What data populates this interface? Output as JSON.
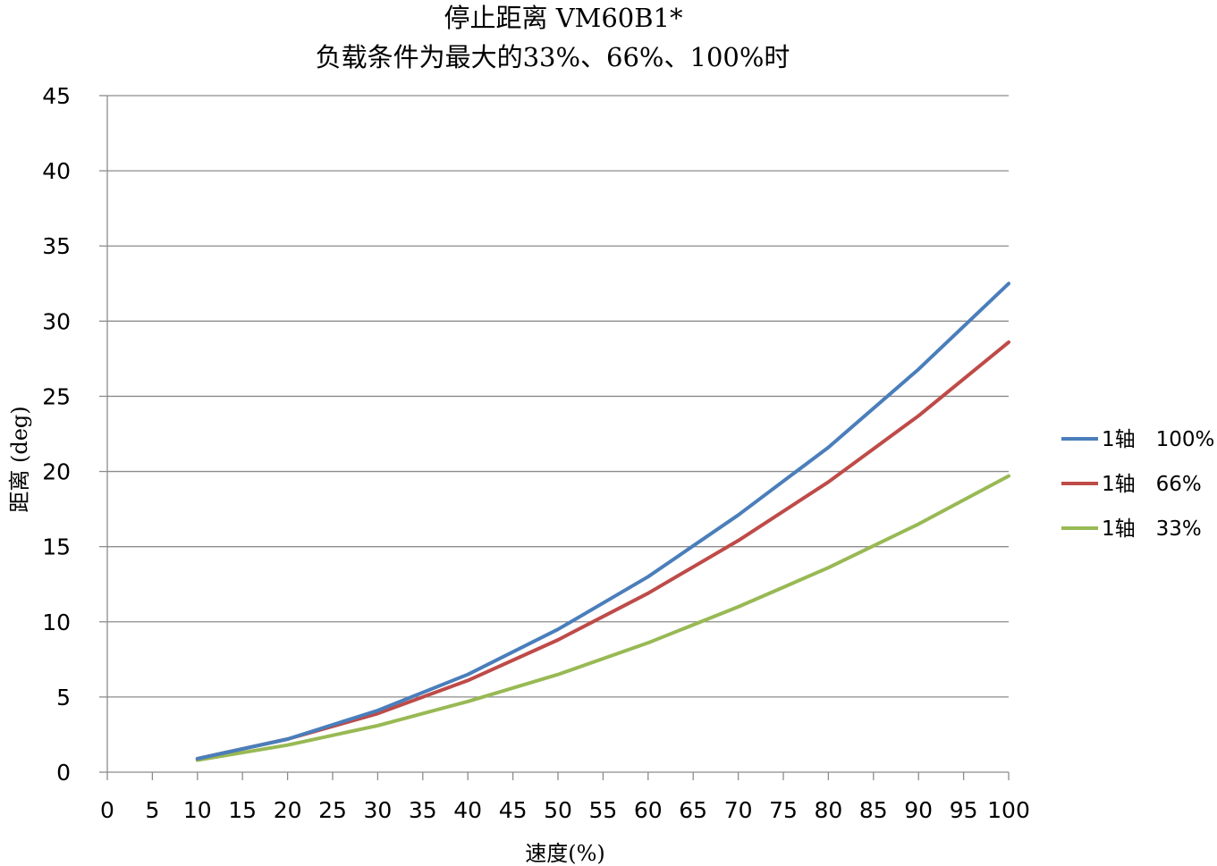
{
  "chart_data": {
    "type": "line",
    "title": [
      "停止距离 VM60B1*",
      "负载条件为最大的33%、66%、100%时"
    ],
    "xlabel": "速度(%)",
    "ylabel": "距离 (deg)",
    "xlim": [
      0,
      100
    ],
    "ylim": [
      0,
      45
    ],
    "x_ticks": [
      "0",
      "5",
      "10",
      "15",
      "20",
      "25",
      "30",
      "35",
      "40",
      "45",
      "50",
      "55",
      "60",
      "65",
      "70",
      "75",
      "80",
      "85",
      "90",
      "95",
      "100"
    ],
    "y_ticks": [
      "0",
      "5",
      "10",
      "15",
      "20",
      "25",
      "30",
      "35",
      "40",
      "45"
    ],
    "x": [
      10,
      20,
      30,
      40,
      50,
      60,
      70,
      80,
      90,
      100
    ],
    "grid": "horizontal",
    "legend_position": "right",
    "series": [
      {
        "name": "1轴　100%",
        "color": "#4a7ebb",
        "values": [
          0.9,
          2.2,
          4.1,
          6.5,
          9.5,
          13.0,
          17.1,
          21.6,
          26.8,
          32.5
        ]
      },
      {
        "name": "1轴　66%",
        "color": "#be4b48",
        "values": [
          0.9,
          2.2,
          3.9,
          6.1,
          8.8,
          11.9,
          15.4,
          19.3,
          23.7,
          28.6
        ]
      },
      {
        "name": "1轴　33%",
        "color": "#98b954",
        "values": [
          0.8,
          1.8,
          3.1,
          4.7,
          6.5,
          8.6,
          11.0,
          13.6,
          16.5,
          19.7
        ]
      }
    ]
  }
}
